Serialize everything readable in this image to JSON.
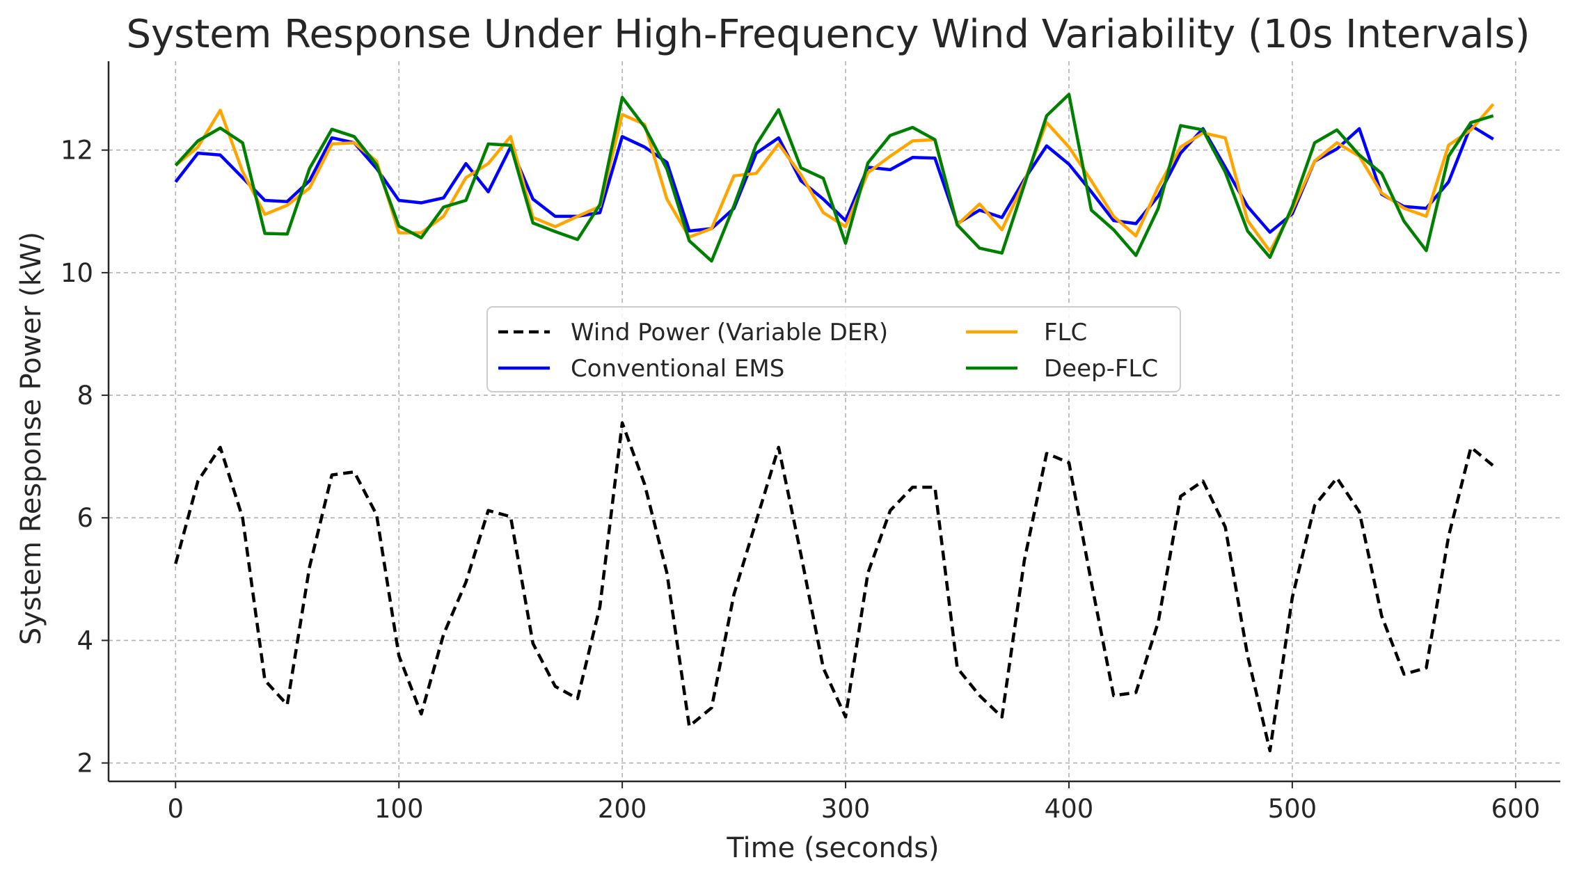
{
  "chart_data": {
    "type": "line",
    "title": "System Response Under High-Frequency Wind Variability (10s Intervals)",
    "xlabel": "Time (seconds)",
    "ylabel": "System Response Power (kW)",
    "xlim": [
      -30,
      620
    ],
    "ylim": [
      1.7,
      13.45
    ],
    "xticks": [
      0,
      100,
      200,
      300,
      400,
      500,
      600
    ],
    "yticks": [
      2,
      4,
      6,
      8,
      10,
      12
    ],
    "grid": true,
    "legend_position": "center",
    "x": [
      0,
      10,
      20,
      30,
      40,
      50,
      60,
      70,
      80,
      90,
      100,
      110,
      120,
      130,
      140,
      150,
      160,
      170,
      180,
      190,
      200,
      210,
      220,
      230,
      240,
      250,
      260,
      270,
      280,
      290,
      300,
      310,
      320,
      330,
      340,
      350,
      360,
      370,
      380,
      390,
      400,
      410,
      420,
      430,
      440,
      450,
      460,
      470,
      480,
      490,
      500,
      510,
      520,
      530,
      540,
      550,
      560,
      570,
      580,
      590
    ],
    "series": [
      {
        "name": "Wind Power (Variable DER)",
        "color": "#000000",
        "dash": "dashed",
        "values": [
          5.25,
          6.6,
          7.15,
          6.0,
          3.35,
          2.95,
          5.2,
          6.7,
          6.75,
          6.05,
          3.75,
          2.8,
          4.1,
          4.95,
          6.12,
          6.02,
          3.95,
          3.25,
          3.05,
          4.55,
          7.55,
          6.55,
          5.1,
          2.6,
          2.9,
          4.75,
          5.95,
          7.15,
          5.4,
          3.55,
          2.75,
          5.1,
          6.12,
          6.5,
          6.5,
          3.55,
          3.1,
          2.75,
          5.3,
          7.05,
          6.9,
          4.95,
          3.1,
          3.15,
          4.3,
          6.35,
          6.6,
          5.85,
          3.75,
          2.2,
          4.7,
          6.2,
          6.65,
          6.1,
          4.4,
          3.45,
          3.55,
          5.7,
          7.15,
          6.85
        ]
      },
      {
        "name": "Conventional EMS",
        "color": "#0000ff",
        "values": [
          11.48,
          11.95,
          11.92,
          11.55,
          11.18,
          11.16,
          11.5,
          12.2,
          12.12,
          11.7,
          11.18,
          11.14,
          11.22,
          11.78,
          11.32,
          12.05,
          11.2,
          10.92,
          10.92,
          10.98,
          12.22,
          12.05,
          11.8,
          10.68,
          10.72,
          11.05,
          11.95,
          12.2,
          11.5,
          11.2,
          10.85,
          11.72,
          11.68,
          11.88,
          11.87,
          10.8,
          11.02,
          10.9,
          11.52,
          12.07,
          11.77,
          11.32,
          10.85,
          10.8,
          11.25,
          11.95,
          12.35,
          11.72,
          11.08,
          10.66,
          10.96,
          11.82,
          12.02,
          12.35,
          11.28,
          11.08,
          11.05,
          11.48,
          12.4,
          12.18
        ]
      },
      {
        "name": "FLC",
        "color": "#ffa500",
        "values": [
          11.75,
          12.05,
          12.65,
          11.65,
          10.95,
          11.1,
          11.38,
          12.1,
          12.12,
          11.82,
          10.65,
          10.65,
          10.92,
          11.55,
          11.78,
          12.22,
          10.9,
          10.75,
          10.92,
          11.08,
          12.58,
          12.42,
          11.2,
          10.58,
          10.72,
          11.58,
          11.62,
          12.1,
          11.6,
          10.98,
          10.75,
          11.63,
          11.9,
          12.15,
          12.17,
          10.78,
          11.12,
          10.7,
          11.48,
          12.45,
          12.05,
          11.5,
          10.92,
          10.6,
          11.4,
          12.05,
          12.28,
          12.2,
          10.85,
          10.35,
          11.02,
          11.82,
          12.12,
          11.9,
          11.3,
          11.05,
          10.92,
          12.08,
          12.33,
          12.75
        ]
      },
      {
        "name": "Deep-FLC",
        "color": "#008000",
        "values": [
          11.75,
          12.15,
          12.36,
          12.12,
          10.64,
          10.63,
          11.7,
          12.34,
          12.22,
          11.76,
          10.76,
          10.57,
          11.07,
          11.18,
          12.1,
          12.08,
          10.81,
          10.67,
          10.54,
          11.11,
          12.86,
          12.38,
          11.69,
          10.52,
          10.19,
          11.09,
          12.09,
          12.66,
          11.71,
          11.54,
          10.48,
          11.79,
          12.24,
          12.37,
          12.17,
          10.78,
          10.4,
          10.32,
          11.43,
          12.56,
          12.91,
          11.02,
          10.7,
          10.28,
          11.05,
          12.4,
          12.33,
          11.64,
          10.68,
          10.25,
          11.08,
          12.12,
          12.33,
          11.92,
          11.62,
          10.84,
          10.36,
          11.9,
          12.45,
          12.56
        ]
      }
    ]
  }
}
